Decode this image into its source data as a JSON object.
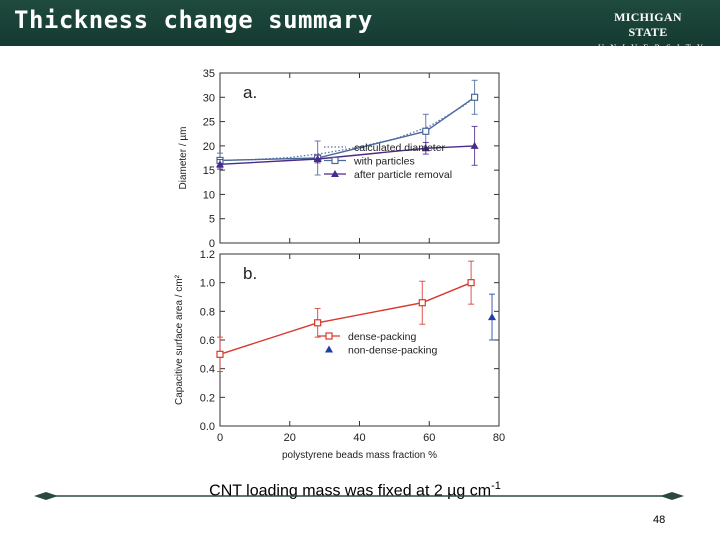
{
  "header": {
    "title": "Thickness change summary"
  },
  "logo": {
    "line1": "MICHIGAN STATE",
    "line2": "UNIVERSITY"
  },
  "chart_data": [
    {
      "type": "line",
      "panel_label": "a.",
      "xlabel": "",
      "ylabel": "Diameter / µm",
      "xlim": [
        0,
        80
      ],
      "ylim": [
        0,
        35
      ],
      "yticks": [
        0,
        5,
        10,
        15,
        20,
        25,
        30,
        35
      ],
      "legend_position": "bottom-right",
      "series": [
        {
          "name": "calculated diameter",
          "style": "dotted",
          "color": "#5a6fa8",
          "x": [
            0,
            10,
            20,
            30,
            40,
            50,
            60,
            70,
            73
          ],
          "y": [
            17,
            17.2,
            17.6,
            18.5,
            19.8,
            21.4,
            24,
            28.3,
            30
          ]
        },
        {
          "name": "with particles",
          "marker": "square",
          "color": "#4a6a9a",
          "x": [
            0,
            28,
            59,
            73
          ],
          "y": [
            17,
            17.5,
            23,
            30
          ],
          "err": [
            1.5,
            3.5,
            3.5,
            3.5
          ]
        },
        {
          "name": "after particle removal",
          "marker": "triangle",
          "color": "#4a2a8a",
          "x": [
            0,
            28,
            59,
            73
          ],
          "y": [
            16.2,
            17.3,
            19.5,
            20
          ],
          "err": [
            1.0,
            0.8,
            1.2,
            4.0
          ]
        }
      ]
    },
    {
      "type": "line",
      "panel_label": "b.",
      "xlabel": "polystyrene beads mass fraction %",
      "ylabel": "Capacitive surface area / cm²",
      "xlim": [
        0,
        80
      ],
      "ylim": [
        0,
        1.2
      ],
      "xticks": [
        0,
        20,
        40,
        60,
        80
      ],
      "yticks": [
        "0.0",
        "0.2",
        "0.4",
        "0.6",
        "0.8",
        "1.0",
        "1.2"
      ],
      "legend_position": "bottom-center",
      "series": [
        {
          "name": "dense-packing",
          "marker": "square",
          "color": "#d9382c",
          "x": [
            0,
            28,
            58,
            72
          ],
          "y": [
            0.5,
            0.72,
            0.86,
            1.0
          ],
          "err": [
            0.12,
            0.1,
            0.15,
            0.15
          ]
        },
        {
          "name": "non-dense-packing",
          "marker": "triangle",
          "color": "#1f3fa8",
          "x": [
            78
          ],
          "y": [
            0.76
          ],
          "err": [
            0.16
          ]
        }
      ]
    }
  ],
  "caption": {
    "text": "CNT loading mass was fixed at 2 µg cm",
    "sup": "-1"
  },
  "page_number": "48",
  "colors": {
    "header_bg": "#1a4438",
    "decor_line": "#2c4a3c"
  }
}
